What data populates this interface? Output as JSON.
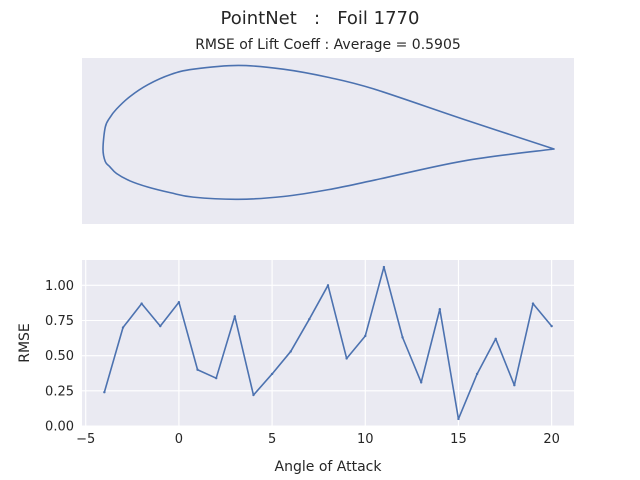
{
  "figure": {
    "suptitle": "PointNet   :   Foil 1770",
    "subtitle": "RMSE of Lift Coeff : Average = 0.5905"
  },
  "chart_data": [
    {
      "type": "line",
      "panel": "airfoil-shape",
      "description_series": "airfoil outline",
      "grid": false,
      "axes_visible": false,
      "x": [
        1.0,
        0.8,
        0.6,
        0.5,
        0.4,
        0.3,
        0.2,
        0.15,
        0.1,
        0.06,
        0.03,
        0.015,
        0.005,
        0.0,
        0.005,
        0.015,
        0.03,
        0.06,
        0.1,
        0.15,
        0.2,
        0.3,
        0.4,
        0.5,
        0.6,
        0.8,
        1.0
      ],
      "y": [
        0.0,
        0.0463,
        0.0939,
        0.1119,
        0.1247,
        0.1306,
        0.1247,
        0.1164,
        0.1007,
        0.0821,
        0.0625,
        0.0488,
        0.0341,
        0.0,
        -0.0195,
        -0.0276,
        -0.0383,
        -0.0499,
        -0.0596,
        -0.0684,
        -0.0752,
        -0.0786,
        -0.0742,
        -0.0635,
        -0.0489,
        -0.0186,
        0.0
      ],
      "xlim": [
        0.0,
        1.0
      ]
    },
    {
      "type": "line",
      "panel": "rmse-vs-aoa",
      "xlabel": "Angle of Attack",
      "ylabel": "RMSE",
      "xlim": [
        -5.2,
        21.2
      ],
      "ylim": [
        0.0,
        1.18
      ],
      "xticks": [
        -5,
        0,
        5,
        10,
        15,
        20
      ],
      "yticks": [
        0.0,
        0.25,
        0.5,
        0.75,
        1.0
      ],
      "xtick_labels": [
        "−5",
        "0",
        "5",
        "10",
        "15",
        "20"
      ],
      "ytick_labels": [
        "0.00",
        "0.25",
        "0.50",
        "0.75",
        "1.00"
      ],
      "grid": true,
      "x": [
        -4,
        -3,
        -2,
        -1,
        0,
        1,
        2,
        3,
        4,
        5,
        6,
        7,
        8,
        9,
        10,
        11,
        12,
        13,
        14,
        15,
        16,
        17,
        18,
        19,
        20
      ],
      "y": [
        0.24,
        0.7,
        0.87,
        0.71,
        0.88,
        0.4,
        0.34,
        0.78,
        0.22,
        0.37,
        0.53,
        0.76,
        1.0,
        0.48,
        0.64,
        1.13,
        0.63,
        0.31,
        0.83,
        0.05,
        0.37,
        0.62,
        0.29,
        0.87,
        0.71
      ]
    }
  ],
  "colors": {
    "line": "#4c72b0",
    "panel_background": "#eaeaf2",
    "grid": "#ffffff",
    "text": "#262626"
  }
}
